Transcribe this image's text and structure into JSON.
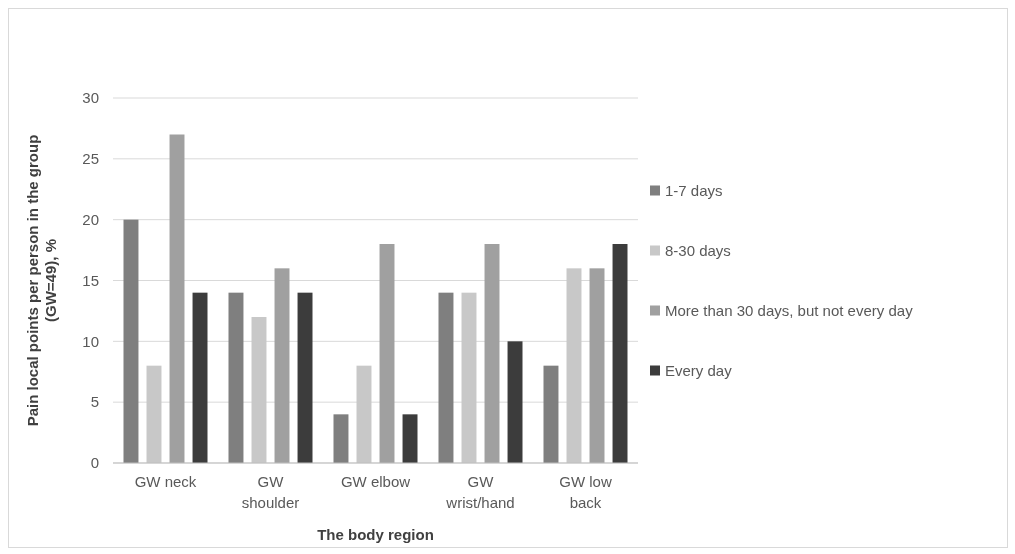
{
  "chart_data": {
    "type": "bar",
    "xlabel": "The body region",
    "ylabel": "Pain local points per person in the group (GW=49), %",
    "categories": [
      "GW neck",
      "GW shoulder",
      "GW elbow",
      "GW wrist/hand",
      "GW low back"
    ],
    "series": [
      {
        "name": "1-7 days",
        "color": "#7f7f7f",
        "values": [
          20,
          14,
          4,
          14,
          8
        ]
      },
      {
        "name": "8-30 days",
        "color": "#c8c8c8",
        "values": [
          8,
          12,
          8,
          14,
          16
        ]
      },
      {
        "name": "More than 30 days, but not every day",
        "color": "#a0a0a0",
        "values": [
          27,
          16,
          18,
          18,
          16
        ]
      },
      {
        "name": "Every day",
        "color": "#3c3c3c",
        "values": [
          14,
          14,
          4,
          10,
          18
        ]
      }
    ],
    "ylim": [
      0,
      30
    ],
    "yticks": [
      0,
      5,
      10,
      15,
      20,
      25,
      30
    ],
    "grid": "y",
    "legend": "right"
  }
}
